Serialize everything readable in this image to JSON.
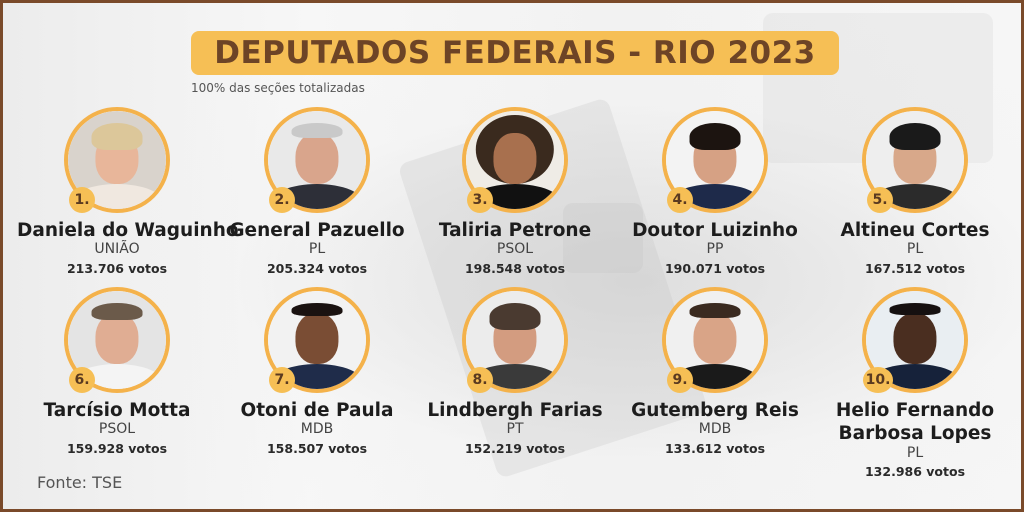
{
  "title": "DEPUTADOS FEDERAIS - RIO 2023",
  "subtitle": "100% das seções totalizadas",
  "source": "Fonte: TSE",
  "colors": {
    "accent": "#f6bf55",
    "title_text": "#6d4426",
    "border": "#7a4a2a",
    "photo_ring": "#f4b24b"
  },
  "candidates": [
    {
      "rank": "1.",
      "name": "Daniela do Waguinho",
      "party": "UNIÃO",
      "votes": "213.706 votos"
    },
    {
      "rank": "2.",
      "name": "General Pazuello",
      "party": "PL",
      "votes": "205.324 votos"
    },
    {
      "rank": "3.",
      "name": "Taliria Petrone",
      "party": "PSOL",
      "votes": "198.548 votos"
    },
    {
      "rank": "4.",
      "name": "Doutor Luizinho",
      "party": "PP",
      "votes": "190.071 votos"
    },
    {
      "rank": "5.",
      "name": "Altineu Cortes",
      "party": "PL",
      "votes": "167.512 votos"
    },
    {
      "rank": "6.",
      "name": "Tarcísio Motta",
      "party": "PSOL",
      "votes": "159.928 votos"
    },
    {
      "rank": "7.",
      "name": "Otoni de Paula",
      "party": "MDB",
      "votes": "158.507 votos"
    },
    {
      "rank": "8.",
      "name": "Lindbergh Farias",
      "party": "PT",
      "votes": "152.219 votos"
    },
    {
      "rank": "9.",
      "name": "Gutemberg Reis",
      "party": "MDB",
      "votes": "133.612 votos"
    },
    {
      "rank": "10.",
      "name_line1": "Helio Fernando",
      "name_line2": "Barbosa Lopes",
      "party": "PL",
      "votes": "132.986 votos"
    }
  ]
}
